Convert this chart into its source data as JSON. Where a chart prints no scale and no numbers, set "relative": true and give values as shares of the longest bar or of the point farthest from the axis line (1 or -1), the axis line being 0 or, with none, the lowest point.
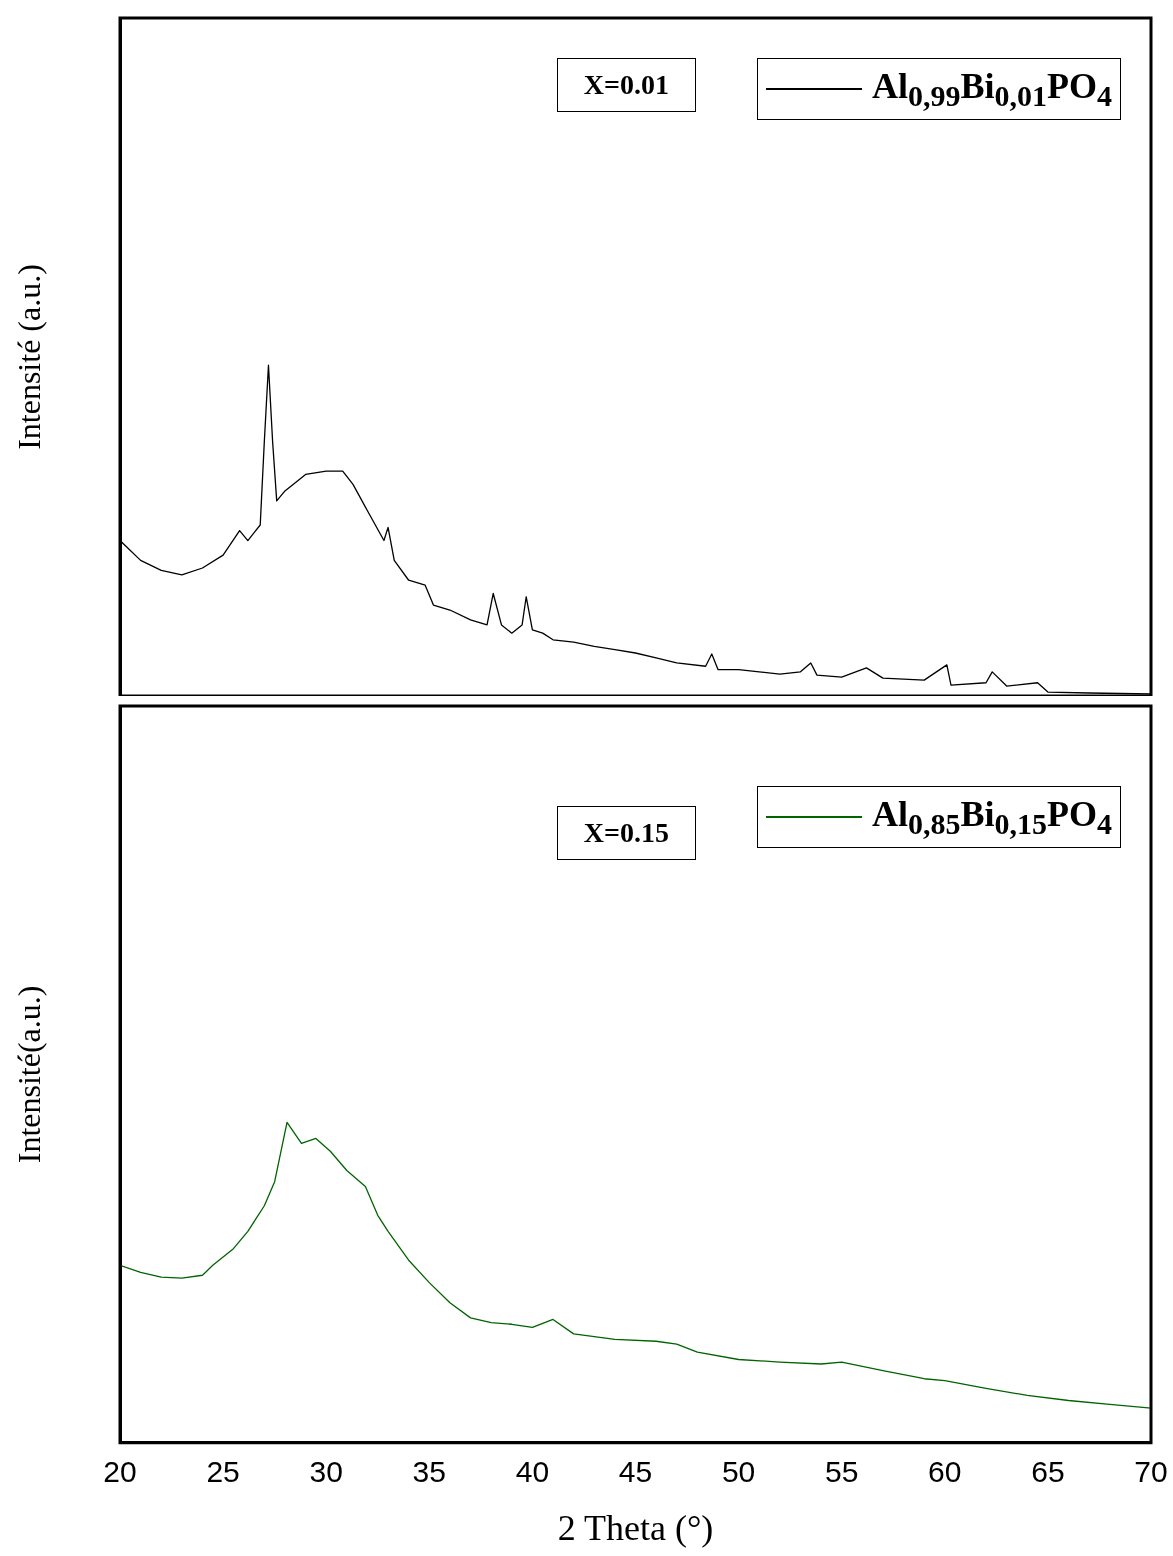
{
  "chart_data": [
    {
      "type": "line",
      "ylabel": "Intensité (a.u.)",
      "relative": true,
      "xlim": [
        20,
        70
      ],
      "xticks": [
        20,
        25,
        30,
        35,
        40,
        45,
        50,
        55,
        60,
        65,
        70
      ],
      "tick_labels": false,
      "legend": "top right",
      "grid": false,
      "annotations": [
        "X=0.01"
      ],
      "series": [
        {
          "name": "Al$_{0,99}$Bi$_{0,01}$PO$_{4}$",
          "color": "#000000",
          "x": [
            20,
            21,
            22,
            23,
            24,
            25,
            25.8,
            26.2,
            26.8,
            27,
            27.2,
            27.4,
            27.6,
            28,
            29,
            30,
            30.8,
            31.3,
            32,
            32.8,
            33,
            33.3,
            34,
            34.8,
            35.2,
            36,
            37,
            37.8,
            38.1,
            38.5,
            39,
            39.5,
            39.7,
            40,
            40.5,
            41,
            42,
            43,
            44,
            45,
            46,
            47,
            48.4,
            48.7,
            49,
            50,
            51,
            52,
            53,
            53.5,
            53.8,
            55,
            56.2,
            57,
            59,
            60.1,
            60.3,
            62,
            62.3,
            63,
            64.5,
            65,
            67,
            70
          ],
          "values": [
            0.47,
            0.41,
            0.38,
            0.366,
            0.387,
            0.426,
            0.5,
            0.47,
            0.517,
            0.77,
            1,
            0.77,
            0.59,
            0.62,
            0.67,
            0.68,
            0.68,
            0.64,
            0.56,
            0.47,
            0.51,
            0.41,
            0.35,
            0.335,
            0.275,
            0.26,
            0.23,
            0.215,
            0.31,
            0.215,
            0.19,
            0.215,
            0.3,
            0.2,
            0.19,
            0.17,
            0.163,
            0.15,
            0.14,
            0.13,
            0.115,
            0.1,
            0.09,
            0.127,
            0.08,
            0.08,
            0.073,
            0.066,
            0.073,
            0.1,
            0.063,
            0.057,
            0.085,
            0.054,
            0.048,
            0.094,
            0.033,
            0.04,
            0.073,
            0.03,
            0.04,
            0.012,
            0.009,
            0.006
          ]
        }
      ]
    },
    {
      "type": "line",
      "ylabel": "Intensité(a.u.)",
      "xlabel": "2 Theta (°)",
      "relative": true,
      "xlim": [
        20,
        70
      ],
      "xticks": [
        20,
        25,
        30,
        35,
        40,
        45,
        50,
        55,
        60,
        65,
        70
      ],
      "tick_labels": "x",
      "legend": "top right",
      "grid": false,
      "annotations": [
        "X=0.15"
      ],
      "series": [
        {
          "name": "Al$_{0,85}$Bi$_{0,15}$PO$_{4}$",
          "color": "#006400",
          "x": [
            20,
            21,
            22,
            23,
            24,
            24.5,
            25.5,
            26.2,
            27,
            27.5,
            28.1,
            28.8,
            29.5,
            30.2,
            31,
            31.9,
            32.5,
            33,
            34,
            35,
            36,
            37,
            38,
            39,
            40,
            41,
            42,
            44,
            46,
            47,
            48,
            50,
            52,
            54,
            55,
            57,
            59,
            60,
            62,
            64,
            66,
            68,
            70
          ],
          "values": [
            0.554,
            0.532,
            0.517,
            0.514,
            0.523,
            0.554,
            0.606,
            0.66,
            0.74,
            0.815,
            1,
            0.935,
            0.95,
            0.91,
            0.85,
            0.8,
            0.71,
            0.66,
            0.57,
            0.5,
            0.437,
            0.39,
            0.375,
            0.37,
            0.36,
            0.385,
            0.34,
            0.323,
            0.317,
            0.308,
            0.283,
            0.26,
            0.252,
            0.246,
            0.252,
            0.225,
            0.2,
            0.194,
            0.17,
            0.148,
            0.132,
            0.12,
            0.108
          ]
        }
      ]
    }
  ]
}
